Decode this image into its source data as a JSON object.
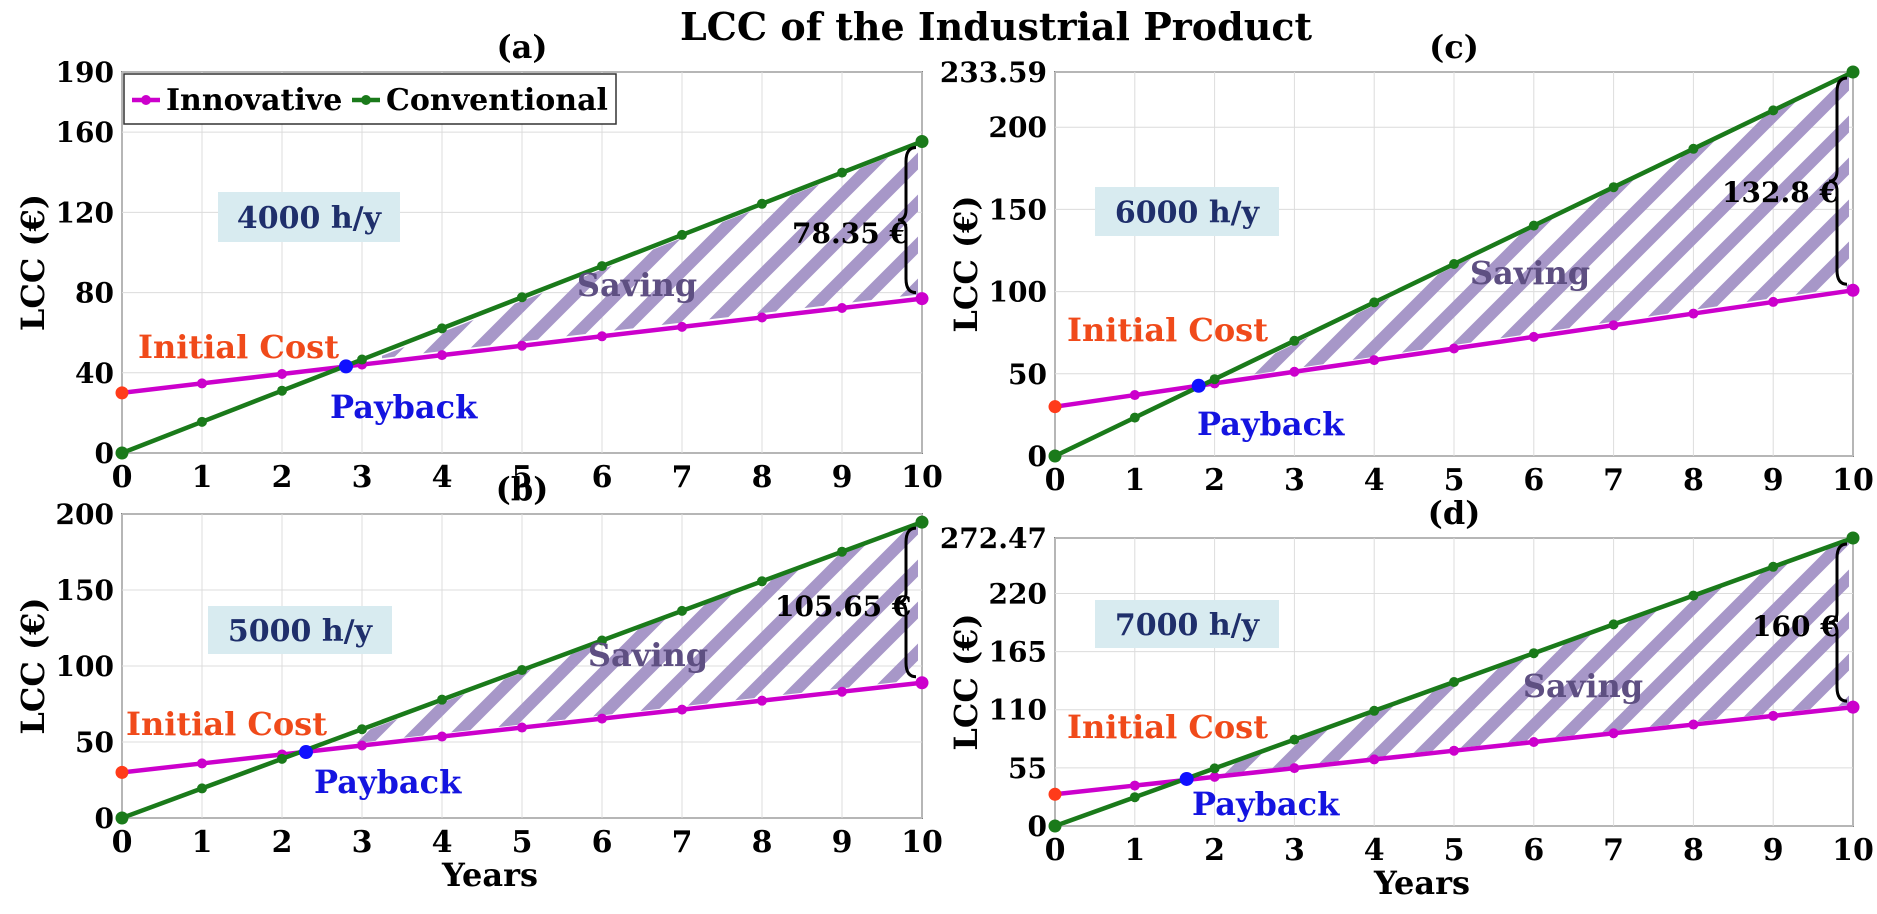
{
  "figure_title": "LCC of the Industrial Product",
  "legend": [
    {
      "name": "Innovative",
      "color": "#cc00cc"
    },
    {
      "name": "Conventional",
      "color": "#1a7a1a"
    }
  ],
  "colors": {
    "innovative": "#cc00cc",
    "conventional": "#1a7a1a",
    "initial_cost_marker": "#ff3b1a",
    "payback_marker": "#1010ff",
    "saving_hatch": "#a797c8",
    "label_box": "#d8ebf0",
    "grid": "#dcdcdc"
  },
  "chart_data": [
    {
      "panel": "(a)",
      "type": "line",
      "hours_label": "4000 h/y",
      "xlabel": "",
      "ylabel": "LCC (€)",
      "xlim": [
        0,
        10
      ],
      "ylim": [
        0,
        190
      ],
      "yticks": [
        0,
        40,
        80,
        120,
        160,
        190
      ],
      "ytick_labels": [
        "0",
        "40",
        "80",
        "120",
        "160",
        "190"
      ],
      "x": [
        0,
        1,
        2,
        3,
        4,
        5,
        6,
        7,
        8,
        9,
        10
      ],
      "series": [
        {
          "name": "Innovative",
          "values": [
            30,
            34.7,
            39.4,
            44.1,
            48.8,
            53.5,
            58.2,
            62.9,
            67.6,
            72.3,
            77
          ]
        },
        {
          "name": "Conventional",
          "values": [
            0,
            15.54,
            31.07,
            46.61,
            62.14,
            77.68,
            93.21,
            108.75,
            124.28,
            139.82,
            155.35
          ]
        }
      ],
      "payback": {
        "x": 2.8,
        "y": 43.2
      },
      "saving_diff": "78.35 €",
      "annotations": {
        "initial_cost": "Initial Cost",
        "payback": "Payback",
        "saving": "Saving"
      }
    },
    {
      "panel": "(b)",
      "type": "line",
      "hours_label": "5000 h/y",
      "xlabel": "Years",
      "ylabel": "LCC (€)",
      "xlim": [
        0,
        10
      ],
      "ylim": [
        0,
        200
      ],
      "yticks": [
        0,
        50,
        100,
        150,
        200
      ],
      "ytick_labels": [
        "0",
        "50",
        "100",
        "150",
        "200"
      ],
      "x": [
        0,
        1,
        2,
        3,
        4,
        5,
        6,
        7,
        8,
        9,
        10
      ],
      "series": [
        {
          "name": "Innovative",
          "values": [
            30,
            35.9,
            41.8,
            47.7,
            53.6,
            59.5,
            65.4,
            71.3,
            77.2,
            83.1,
            89
          ]
        },
        {
          "name": "Conventional",
          "values": [
            0,
            19.47,
            38.93,
            58.4,
            77.86,
            97.33,
            116.79,
            136.26,
            155.72,
            175.19,
            194.65
          ]
        }
      ],
      "payback": {
        "x": 2.3,
        "y": 43.4
      },
      "saving_diff": "105.65 €",
      "annotations": {
        "initial_cost": "Initial Cost",
        "payback": "Payback",
        "saving": "Saving"
      }
    },
    {
      "panel": "(c)",
      "type": "line",
      "hours_label": "6000 h/y",
      "xlabel": "",
      "ylabel": "LCC (€)",
      "xlim": [
        0,
        10
      ],
      "ylim": [
        0,
        233.59
      ],
      "yticks": [
        0,
        50,
        100,
        150,
        200,
        233.59
      ],
      "ytick_labels": [
        "0",
        "50",
        "100",
        "150",
        "200",
        "233.59"
      ],
      "x": [
        0,
        1,
        2,
        3,
        4,
        5,
        6,
        7,
        8,
        9,
        10
      ],
      "series": [
        {
          "name": "Innovative",
          "values": [
            30,
            37.08,
            44.16,
            51.24,
            58.32,
            65.4,
            72.48,
            79.56,
            86.64,
            93.72,
            100.79
          ]
        },
        {
          "name": "Conventional",
          "values": [
            0,
            23.36,
            46.72,
            70.08,
            93.44,
            116.8,
            140.15,
            163.51,
            186.87,
            210.23,
            233.59
          ]
        }
      ],
      "payback": {
        "x": 1.8,
        "y": 42.7
      },
      "saving_diff": "132.8 €",
      "annotations": {
        "initial_cost": "Initial Cost",
        "payback": "Payback",
        "saving": "Saving"
      }
    },
    {
      "panel": "(d)",
      "type": "line",
      "hours_label": "7000 h/y",
      "xlabel": "Years",
      "ylabel": "LCC (€)",
      "xlim": [
        0,
        10
      ],
      "ylim": [
        0,
        272.47
      ],
      "yticks": [
        0,
        55,
        110,
        165,
        220,
        272.47
      ],
      "ytick_labels": [
        "0",
        "55",
        "110",
        "165",
        "220",
        "272.47"
      ],
      "x": [
        0,
        1,
        2,
        3,
        4,
        5,
        6,
        7,
        8,
        9,
        10
      ],
      "series": [
        {
          "name": "Innovative",
          "values": [
            30,
            38.25,
            46.49,
            54.74,
            62.99,
            71.24,
            79.48,
            87.73,
            95.98,
            104.22,
            112.47
          ]
        },
        {
          "name": "Conventional",
          "values": [
            0,
            27.25,
            54.49,
            81.74,
            108.99,
            136.24,
            163.48,
            190.73,
            217.98,
            245.22,
            272.47
          ]
        }
      ],
      "payback": {
        "x": 1.65,
        "y": 44.5
      },
      "saving_diff": "160 €",
      "annotations": {
        "initial_cost": "Initial Cost",
        "payback": "Payback",
        "saving": "Saving"
      }
    }
  ]
}
